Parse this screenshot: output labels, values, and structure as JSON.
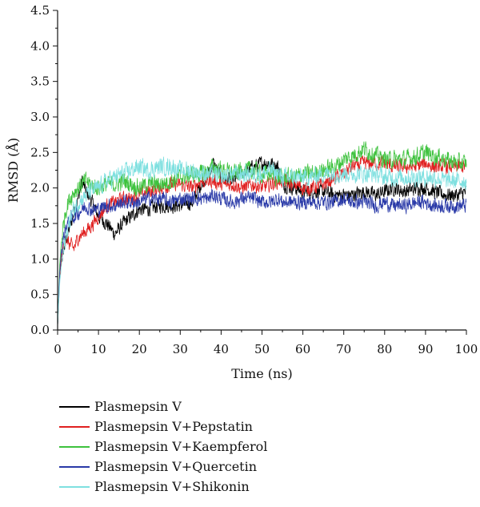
{
  "chart_data": {
    "type": "line",
    "title": "",
    "xlabel": "Time (ns)",
    "ylabel": "RMSD (Å)",
    "xlim": [
      0,
      100
    ],
    "ylim": [
      0,
      4.5
    ],
    "x_ticks": [
      "0",
      "10",
      "20",
      "30",
      "40",
      "50",
      "60",
      "70",
      "80",
      "90",
      "100"
    ],
    "y_ticks": [
      "0.0",
      "0.5",
      "1.0",
      "1.5",
      "2.0",
      "2.5",
      "3.0",
      "3.5",
      "4.0",
      "4.5"
    ],
    "grid": false,
    "legend_position": "bottom",
    "x": [
      0,
      0.5,
      1,
      2,
      3,
      4,
      5,
      6,
      7,
      8,
      10,
      12,
      14,
      16,
      18,
      20,
      22,
      25,
      28,
      30,
      33,
      35,
      37,
      38,
      40,
      43,
      45,
      48,
      50,
      52,
      54,
      55,
      58,
      60,
      62,
      65,
      68,
      70,
      72,
      75,
      78,
      80,
      82,
      85,
      88,
      90,
      92,
      95,
      98,
      100
    ],
    "series": [
      {
        "name": "Plasmepsin V",
        "color": "#000000",
        "noise": 0.09,
        "values": [
          0.05,
          0.75,
          1.0,
          1.25,
          1.45,
          1.65,
          1.85,
          2.1,
          1.95,
          1.85,
          1.6,
          1.5,
          1.35,
          1.5,
          1.6,
          1.7,
          1.7,
          1.75,
          1.75,
          1.75,
          1.8,
          2.05,
          2.2,
          2.35,
          2.15,
          2.1,
          2.2,
          2.3,
          2.35,
          2.35,
          2.3,
          2.05,
          2.0,
          1.95,
          1.95,
          1.95,
          1.9,
          1.9,
          1.9,
          1.95,
          1.9,
          1.95,
          2.0,
          1.95,
          2.0,
          2.0,
          1.95,
          1.9,
          1.9,
          1.95
        ]
      },
      {
        "name": "Plasmepsin V+Pepstatin",
        "color": "#e02020",
        "noise": 0.09,
        "values": [
          0.05,
          0.75,
          1.05,
          1.3,
          1.2,
          1.15,
          1.3,
          1.35,
          1.4,
          1.45,
          1.6,
          1.75,
          1.8,
          1.85,
          1.85,
          1.9,
          1.95,
          2.0,
          2.05,
          2.05,
          2.0,
          2.1,
          2.1,
          2.1,
          2.05,
          2.05,
          2.0,
          2.05,
          2.0,
          2.05,
          2.1,
          2.1,
          2.05,
          2.0,
          2.0,
          2.05,
          2.15,
          2.2,
          2.3,
          2.35,
          2.35,
          2.35,
          2.3,
          2.3,
          2.3,
          2.35,
          2.3,
          2.3,
          2.3,
          2.3
        ]
      },
      {
        "name": "Plasmepsin V+Kaempferol",
        "color": "#3ec23e",
        "noise": 0.11,
        "values": [
          0.05,
          0.9,
          1.3,
          1.7,
          1.85,
          1.95,
          2.0,
          2.05,
          2.1,
          2.05,
          2.0,
          2.05,
          2.05,
          2.1,
          2.05,
          2.0,
          2.05,
          2.05,
          2.1,
          2.15,
          2.2,
          2.2,
          2.25,
          2.3,
          2.25,
          2.2,
          2.25,
          2.25,
          2.2,
          2.2,
          2.15,
          2.15,
          2.15,
          2.2,
          2.2,
          2.25,
          2.3,
          2.4,
          2.45,
          2.55,
          2.45,
          2.4,
          2.4,
          2.4,
          2.45,
          2.5,
          2.45,
          2.4,
          2.35,
          2.35
        ]
      },
      {
        "name": "Plasmepsin V+Quercetin",
        "color": "#2a3aa8",
        "noise": 0.09,
        "values": [
          0.05,
          0.8,
          1.15,
          1.45,
          1.55,
          1.6,
          1.65,
          1.7,
          1.75,
          1.7,
          1.7,
          1.75,
          1.75,
          1.8,
          1.8,
          1.8,
          1.85,
          1.85,
          1.8,
          1.85,
          1.85,
          1.85,
          1.85,
          1.9,
          1.85,
          1.8,
          1.85,
          1.85,
          1.8,
          1.8,
          1.85,
          1.8,
          1.8,
          1.8,
          1.8,
          1.8,
          1.8,
          1.85,
          1.8,
          1.8,
          1.75,
          1.8,
          1.75,
          1.75,
          1.8,
          1.8,
          1.75,
          1.75,
          1.75,
          1.75
        ]
      },
      {
        "name": "Plasmepsin V+Shikonin",
        "color": "#7fe0e0",
        "noise": 0.11,
        "values": [
          0.05,
          0.65,
          0.95,
          1.3,
          1.55,
          1.7,
          1.8,
          1.85,
          1.9,
          1.95,
          2.0,
          2.1,
          2.15,
          2.2,
          2.25,
          2.3,
          2.25,
          2.3,
          2.3,
          2.25,
          2.25,
          2.2,
          2.2,
          2.2,
          2.15,
          2.2,
          2.2,
          2.2,
          2.2,
          2.25,
          2.2,
          2.15,
          2.15,
          2.15,
          2.15,
          2.2,
          2.2,
          2.2,
          2.2,
          2.2,
          2.2,
          2.15,
          2.15,
          2.15,
          2.15,
          2.15,
          2.15,
          2.1,
          2.1,
          2.1
        ]
      }
    ]
  }
}
